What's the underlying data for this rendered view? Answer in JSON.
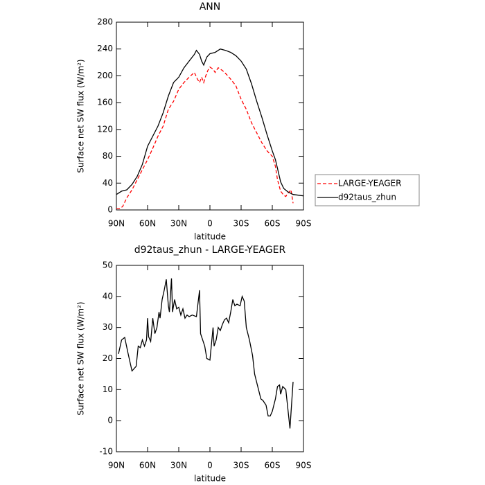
{
  "chart_data": [
    {
      "type": "line",
      "title": "ANN",
      "xlabel": "latitude",
      "ylabel": "Surface net SW flux (W/m²)",
      "xlim": [
        90,
        -90
      ],
      "ylim": [
        0,
        280
      ],
      "xticks": [
        {
          "value": 90,
          "label": "90N"
        },
        {
          "value": 60,
          "label": "60N"
        },
        {
          "value": 30,
          "label": "30N"
        },
        0,
        {
          "value": -30,
          "label": "30S"
        },
        {
          "value": -60,
          "label": "60S"
        },
        {
          "value": -90,
          "label": "90S"
        }
      ],
      "yticks": [
        0,
        40,
        80,
        120,
        160,
        200,
        240,
        280
      ],
      "legend": "right",
      "series": [
        {
          "name": "LARGE-YEAGER",
          "color": "#ff0000",
          "dashed": true,
          "x": [
            90,
            87,
            84,
            80,
            75,
            70,
            65,
            60,
            55,
            50,
            45,
            40,
            35,
            30,
            25,
            20,
            15,
            12,
            10,
            8,
            6,
            4,
            2,
            0,
            -3,
            -5,
            -8,
            -12,
            -16,
            -20,
            -25,
            -30,
            -35,
            -40,
            -45,
            -50,
            -55,
            -60,
            -63,
            -65,
            -68,
            -71,
            -73,
            -75,
            -77,
            -78,
            -80
          ],
          "values": [
            2,
            2,
            5,
            18,
            30,
            45,
            60,
            75,
            92,
            110,
            125,
            150,
            162,
            180,
            190,
            198,
            205,
            195,
            190,
            198,
            190,
            200,
            208,
            213,
            210,
            205,
            212,
            208,
            202,
            195,
            185,
            165,
            150,
            130,
            115,
            100,
            88,
            80,
            65,
            45,
            28,
            22,
            20,
            25,
            28,
            30,
            10
          ]
        },
        {
          "name": "d92taus_zhun",
          "color": "#000000",
          "dashed": false,
          "x": [
            90,
            85,
            80,
            75,
            70,
            65,
            60,
            55,
            50,
            45,
            40,
            35,
            30,
            25,
            20,
            15,
            13,
            10,
            8,
            6,
            3,
            0,
            -5,
            -10,
            -15,
            -20,
            -25,
            -30,
            -35,
            -40,
            -45,
            -50,
            -55,
            -60,
            -63,
            -65,
            -68,
            -71,
            -75,
            -80,
            -85,
            -90
          ],
          "values": [
            23,
            28,
            30,
            38,
            50,
            68,
            95,
            110,
            125,
            145,
            170,
            190,
            198,
            212,
            222,
            232,
            238,
            232,
            222,
            216,
            228,
            233,
            235,
            240,
            238,
            235,
            230,
            222,
            210,
            188,
            162,
            138,
            112,
            88,
            75,
            62,
            42,
            32,
            27,
            23,
            22,
            21
          ]
        }
      ]
    },
    {
      "type": "line",
      "title": "d92taus_zhun - LARGE-YEAGER",
      "xlabel": "latitude",
      "ylabel": "Surface net SW flux (W/m²)",
      "xlim": [
        90,
        -90
      ],
      "ylim": [
        -10,
        50
      ],
      "xticks": [
        {
          "value": 90,
          "label": "90N"
        },
        {
          "value": 60,
          "label": "60N"
        },
        {
          "value": 30,
          "label": "30N"
        },
        0,
        {
          "value": -30,
          "label": "30S"
        },
        {
          "value": -60,
          "label": "60S"
        },
        {
          "value": -90,
          "label": "90S"
        }
      ],
      "yticks": [
        -10,
        0,
        10,
        20,
        30,
        40,
        50
      ],
      "color": "#000000",
      "x": [
        88,
        85,
        82,
        79,
        77,
        75,
        71,
        69,
        67,
        65,
        63,
        61,
        60,
        59,
        57,
        55,
        53,
        51,
        49,
        48,
        46,
        44,
        42,
        40,
        39,
        37,
        36,
        34,
        32,
        30,
        28,
        26,
        24,
        22,
        20,
        17,
        13,
        10,
        9,
        7,
        5,
        3,
        0,
        -3,
        -4,
        -6,
        -8,
        -10,
        -12,
        -14,
        -16,
        -18,
        -20,
        -22,
        -24,
        -26,
        -29,
        -31,
        -33,
        -35,
        -38,
        -41,
        -43,
        -46,
        -49,
        -51,
        -54,
        -56,
        -58,
        -60,
        -63,
        -65,
        -67,
        -68,
        -70,
        -73,
        -77,
        -80
      ],
      "values": [
        21.5,
        26,
        26.8,
        22,
        19,
        16,
        17.5,
        24,
        23.5,
        26,
        24,
        26,
        33,
        27,
        25.5,
        33,
        28,
        30,
        35,
        33,
        39,
        42,
        45.5,
        37,
        35,
        45.8,
        35,
        39,
        36,
        36.5,
        34,
        36,
        33,
        34,
        33.5,
        34,
        33.5,
        42,
        28,
        26,
        24,
        20,
        19.5,
        30,
        24,
        26,
        30,
        29,
        31,
        32.5,
        33,
        31.5,
        35,
        39,
        37,
        37.5,
        37,
        40,
        38.5,
        30,
        26,
        21,
        15,
        11,
        7,
        6.5,
        5,
        1.5,
        1.5,
        3,
        7,
        11,
        11.5,
        8.5,
        11,
        10,
        -2.5,
        12.5
      ]
    }
  ]
}
